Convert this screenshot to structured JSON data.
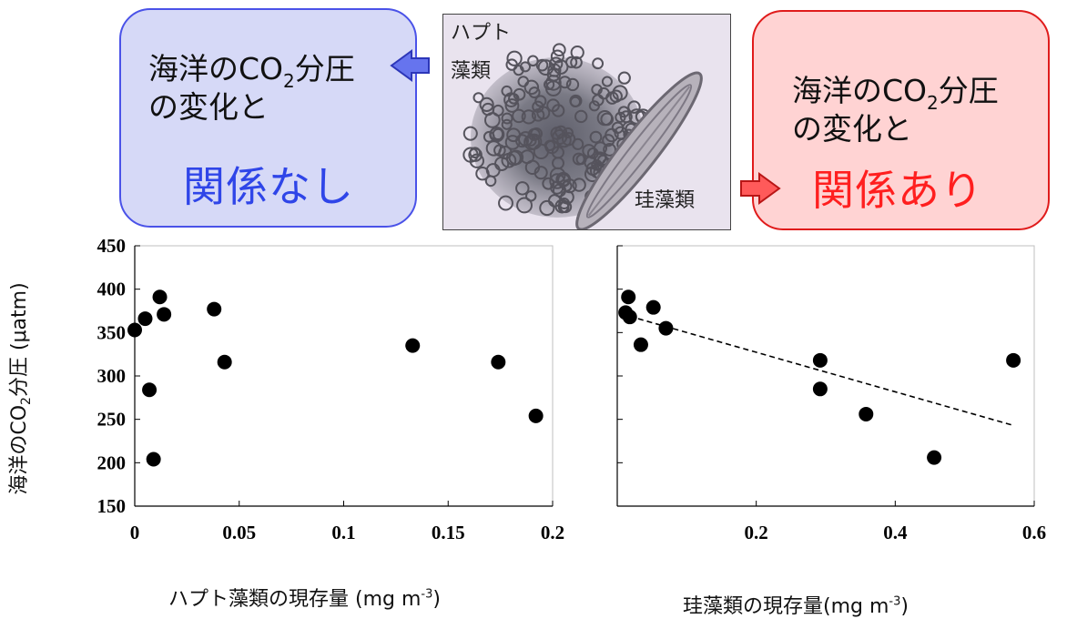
{
  "left_box": {
    "line1": "海洋のCO",
    "line1_sub": "2",
    "line1_tail": "分圧",
    "line2": "の変化と",
    "result": "関係なし",
    "color": "#2f45e8"
  },
  "right_box": {
    "line1": "海洋のCO",
    "line1_sub": "2",
    "line1_tail": "分圧",
    "line2": "の変化と",
    "result": "関係あり",
    "color": "#ff1f1f"
  },
  "photo": {
    "label_haptophyte_1": "ハプト",
    "label_haptophyte_2": "藻類",
    "label_diatom": "珪藻類"
  },
  "chart_data": [
    {
      "type": "scatter",
      "title": "",
      "xlabel": "ハプト藻類の現存量 (mg m",
      "xlabel_sup": "-3",
      "xlabel_tail": ")",
      "ylabel": "海洋のCO",
      "ylabel_sub": "2",
      "ylabel_tail": "分圧 (μatm)",
      "xlim": [
        0,
        0.2
      ],
      "ylim": [
        150,
        450
      ],
      "x_ticks": [
        "0",
        "0.05",
        "0.1",
        "0.15",
        "0.2"
      ],
      "y_ticks": [
        "150",
        "200",
        "250",
        "300",
        "350",
        "400",
        "450"
      ],
      "points": [
        {
          "x": 0.0,
          "y": 353
        },
        {
          "x": 0.005,
          "y": 366
        },
        {
          "x": 0.012,
          "y": 391
        },
        {
          "x": 0.014,
          "y": 371
        },
        {
          "x": 0.007,
          "y": 284
        },
        {
          "x": 0.009,
          "y": 204
        },
        {
          "x": 0.038,
          "y": 377
        },
        {
          "x": 0.043,
          "y": 316
        },
        {
          "x": 0.133,
          "y": 335
        },
        {
          "x": 0.174,
          "y": 316
        },
        {
          "x": 0.192,
          "y": 254
        }
      ],
      "trendline": null
    },
    {
      "type": "scatter",
      "title": "",
      "xlabel": "珪藻類の現存量(mg m",
      "xlabel_sup": "-3",
      "xlabel_tail": ")",
      "xlim": [
        0,
        0.6
      ],
      "ylim": [
        150,
        450
      ],
      "x_ticks": [
        "0",
        "0.2",
        "0.4",
        "0.6"
      ],
      "x_ticks_shown": [
        "0.2",
        "0.4",
        "0.6"
      ],
      "points": [
        {
          "x": 0.012,
          "y": 373
        },
        {
          "x": 0.016,
          "y": 391
        },
        {
          "x": 0.018,
          "y": 368
        },
        {
          "x": 0.034,
          "y": 336
        },
        {
          "x": 0.052,
          "y": 379
        },
        {
          "x": 0.07,
          "y": 355
        },
        {
          "x": 0.292,
          "y": 318
        },
        {
          "x": 0.292,
          "y": 285
        },
        {
          "x": 0.358,
          "y": 256
        },
        {
          "x": 0.456,
          "y": 206
        },
        {
          "x": 0.57,
          "y": 318
        }
      ],
      "trendline": {
        "x": [
          0.03,
          0.57
        ],
        "y": [
          366,
          243
        ],
        "style": "dashed"
      }
    }
  ]
}
